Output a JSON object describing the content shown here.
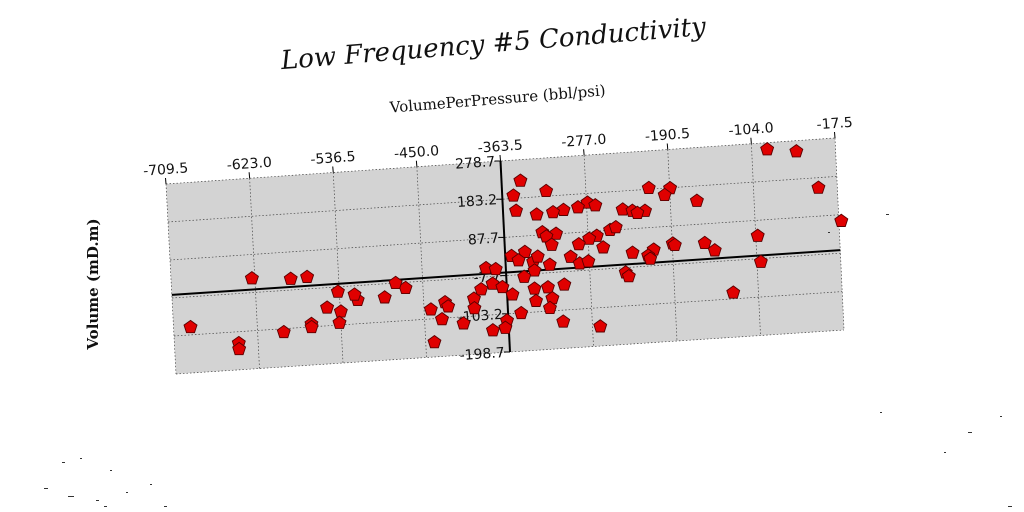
{
  "chart_data": {
    "type": "scatter",
    "title": "Low Frequency #5 Conductivity",
    "xlabel": "VolumePerPressure (bbl/psi)",
    "ylabel": "Volume (mD.m)",
    "xlim": [
      -709.5,
      -17.5
    ],
    "ylim": [
      -198.7,
      278.7
    ],
    "xticks": [
      "-709.5",
      "-623.0",
      "-536.5",
      "-450.0",
      "-363.5",
      "-277.0",
      "-190.5",
      "-104.0",
      "-17.5"
    ],
    "yticks": [
      "278.7",
      "183.2",
      "87.7",
      "-7.7",
      "-103.2",
      "-198.7"
    ],
    "grid": true,
    "marker": "pentagon",
    "marker_color": "#e00000",
    "plot_background": "#d3d3d3",
    "x_zero_line_at": -363.5,
    "y_zero_line_at": 0,
    "points": [
      [
        -88,
        262
      ],
      [
        -58,
        252
      ],
      [
        -344,
        226
      ],
      [
        -318,
        196
      ],
      [
        -352,
        190
      ],
      [
        -212,
        186
      ],
      [
        -190,
        182
      ],
      [
        -37,
        158
      ],
      [
        -196,
        166
      ],
      [
        -163,
        146
      ],
      [
        -276,
        160
      ],
      [
        -268,
        152
      ],
      [
        -286,
        150
      ],
      [
        -301,
        146
      ],
      [
        -329,
        139
      ],
      [
        -312,
        142
      ],
      [
        -240,
        137
      ],
      [
        -230,
        132
      ],
      [
        -217,
        130
      ],
      [
        -225,
        126
      ],
      [
        -324,
        94
      ],
      [
        -310,
        88
      ],
      [
        -254,
        88
      ],
      [
        -248,
        94
      ],
      [
        -268,
        76
      ],
      [
        -276,
        70
      ],
      [
        -320,
        83
      ],
      [
        -315,
        61
      ],
      [
        -287,
        58
      ],
      [
        -262,
        46
      ],
      [
        -190,
        44
      ],
      [
        -188,
        40
      ],
      [
        -157,
        40
      ],
      [
        -210,
        32
      ],
      [
        -15,
        72
      ],
      [
        -102,
        49
      ],
      [
        -343,
        48
      ],
      [
        -357,
        40
      ],
      [
        -350,
        28
      ],
      [
        -335,
        22
      ],
      [
        -330,
        34
      ],
      [
        -318,
        12
      ],
      [
        -296,
        28
      ],
      [
        -287,
        10
      ],
      [
        -278,
        14
      ],
      [
        -232,
        28
      ],
      [
        -216,
        18
      ],
      [
        -334,
        0
      ],
      [
        -384,
        14
      ],
      [
        -374,
        10
      ],
      [
        -378,
        -26
      ],
      [
        -345,
        -14
      ],
      [
        -368,
        -36
      ],
      [
        -390,
        -38
      ],
      [
        -398,
        -60
      ],
      [
        -398,
        -84
      ],
      [
        -335,
        -45
      ],
      [
        -358,
        -56
      ],
      [
        -304,
        -40
      ],
      [
        -321,
        -44
      ],
      [
        -334,
        -76
      ],
      [
        -317,
        -72
      ],
      [
        -320,
        -96
      ],
      [
        -350,
        -104
      ],
      [
        -365,
        -120
      ],
      [
        -367,
        -138
      ],
      [
        -307,
        -132
      ],
      [
        -269,
        -150
      ],
      [
        -380,
        -142
      ],
      [
        -410,
        -120
      ],
      [
        -432,
        -106
      ],
      [
        -441,
        -162
      ],
      [
        -443,
        -80
      ],
      [
        -428,
        -64
      ],
      [
        -425,
        -75
      ],
      [
        -468,
        -22
      ],
      [
        -478,
        -8
      ],
      [
        -518,
        -44
      ],
      [
        -550,
        -58
      ],
      [
        -536,
        -70
      ],
      [
        -567,
        -96
      ],
      [
        -567,
        -104
      ],
      [
        -596,
        -112
      ],
      [
        -643,
        -132
      ],
      [
        -643,
        -147
      ],
      [
        -692,
        -84
      ],
      [
        -626,
        28
      ],
      [
        -586,
        20
      ],
      [
        -569,
        22
      ],
      [
        -538,
        -20
      ],
      [
        -521,
        -30
      ],
      [
        -490,
        -42
      ],
      [
        -538,
        -98
      ],
      [
        -240,
        -20
      ],
      [
        -237,
        -30
      ],
      [
        -214,
        10
      ],
      [
        -130,
        -88
      ],
      [
        -147,
        20
      ],
      [
        -100,
        -16
      ],
      [
        -350,
        152
      ]
    ]
  }
}
